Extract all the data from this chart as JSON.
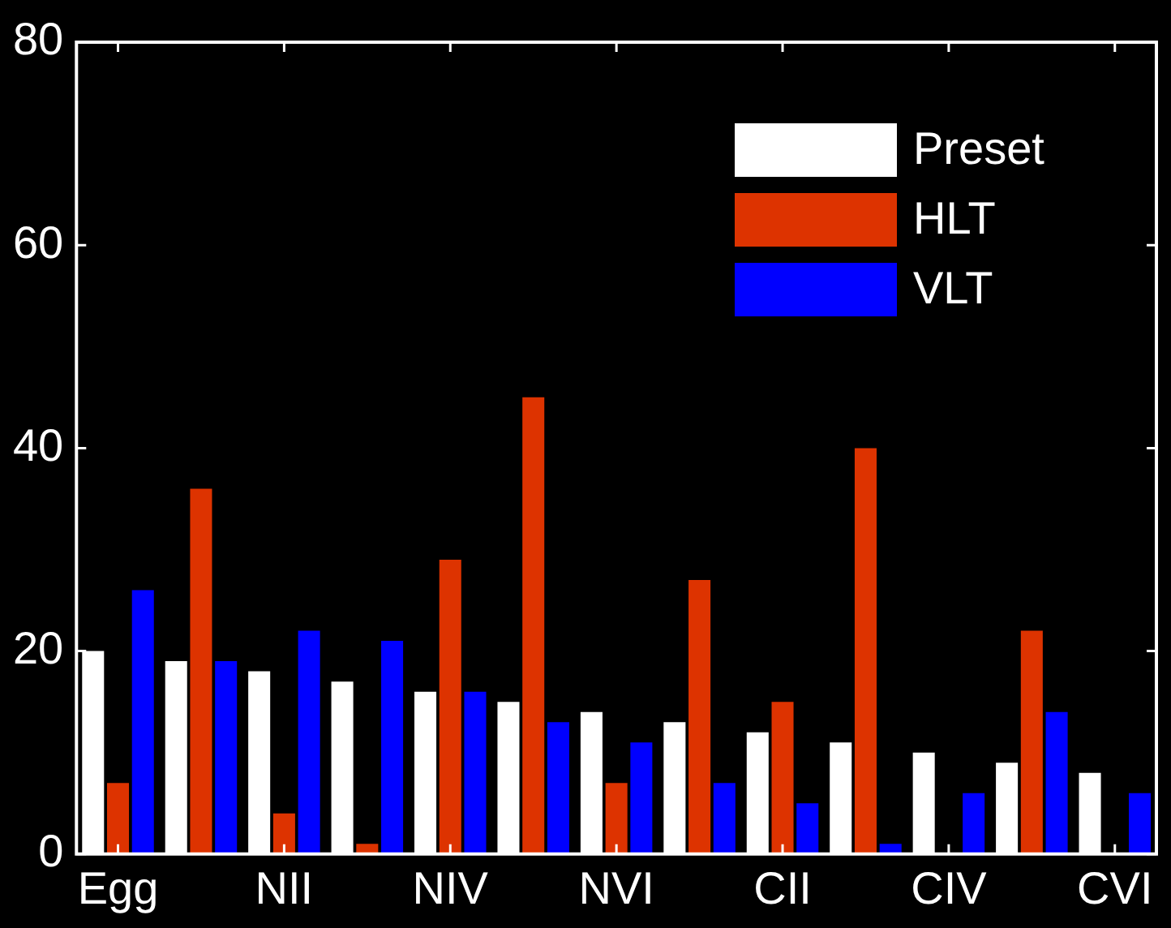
{
  "chart_data": {
    "type": "bar",
    "categories": [
      "Egg",
      null,
      "NII",
      null,
      "NIV",
      null,
      "NVI",
      null,
      "CII",
      null,
      "CIV",
      null,
      "CVI"
    ],
    "series": [
      {
        "name": "Preset",
        "color": "#ffffff",
        "values": [
          20,
          19,
          18,
          17,
          16,
          15,
          14,
          13,
          12,
          11,
          10,
          9,
          8
        ]
      },
      {
        "name": "HLT",
        "color": "#dd3300",
        "values": [
          7,
          36,
          4,
          1,
          29,
          45,
          7,
          27,
          15,
          40,
          0,
          22,
          0
        ]
      },
      {
        "name": "VLT",
        "color": "#0000ff",
        "values": [
          26,
          19,
          22,
          21,
          16,
          13,
          11,
          7,
          5,
          1,
          6,
          14,
          6
        ]
      }
    ],
    "ylim": [
      0,
      80
    ],
    "yticks": [
      0,
      20,
      40,
      60,
      80
    ],
    "grid": false,
    "legend": "top right"
  }
}
